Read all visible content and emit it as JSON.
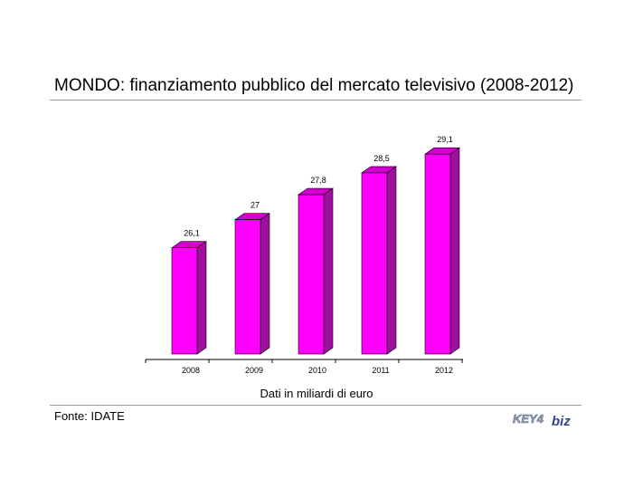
{
  "title": "MONDO: finanziamento pubblico del mercato televisivo (2008-2012)",
  "subtitle": "Dati in miliardi di euro",
  "source": "Fonte: IDATE",
  "logo": {
    "part1": "KEY4",
    "part2": "biz"
  },
  "colors": {
    "bar_front": "#ff00ff",
    "bar_side": "#a0109f",
    "bar_top": "#d400cf"
  },
  "chart_data": {
    "type": "bar",
    "title": "MONDO: finanziamento pubblico del mercato televisivo (2008-2012)",
    "categories": [
      "2008",
      "2009",
      "2010",
      "2011",
      "2012"
    ],
    "values": [
      26.1,
      27,
      27.8,
      28.5,
      29.1
    ],
    "value_labels": [
      "26,1",
      "27",
      "27,8",
      "28,5",
      "29,1"
    ],
    "xlabel": "Dati in miliardi di euro",
    "ylabel": "",
    "grid": false,
    "legend": "none"
  }
}
